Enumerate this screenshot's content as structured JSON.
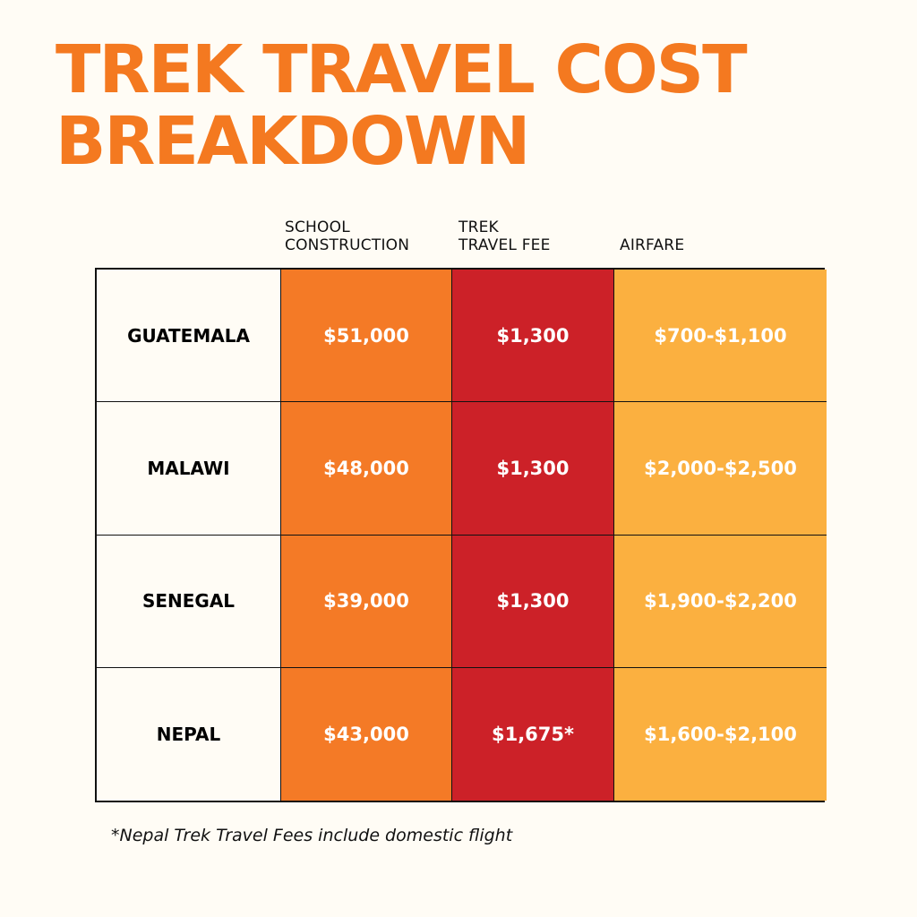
{
  "colors": {
    "title": "#f47920",
    "background": "#fffcf5",
    "school_construction": "#f47a26",
    "trek_travel_fee": "#cc2128",
    "airfare": "#fbb040",
    "grid_line": "#111111"
  },
  "chart_data": {
    "type": "table",
    "title_lines": [
      "TREK TRAVEL COST",
      "BREAKDOWN"
    ],
    "columns": [
      {
        "key": "school",
        "label_lines": [
          "SCHOOL",
          "CONSTRUCTION"
        ]
      },
      {
        "key": "fee",
        "label_lines": [
          "TREK",
          "TRAVEL FEE"
        ]
      },
      {
        "key": "air",
        "label_lines": [
          "AIRFARE"
        ]
      }
    ],
    "rows": [
      {
        "country": "GUATEMALA",
        "school": "$51,000",
        "fee": "$1,300",
        "air": "$700-$1,100"
      },
      {
        "country": "MALAWI",
        "school": "$48,000",
        "fee": "$1,300",
        "air": "$2,000-$2,500"
      },
      {
        "country": "SENEGAL",
        "school": "$39,000",
        "fee": "$1,300",
        "air": "$1,900-$2,200"
      },
      {
        "country": "NEPAL",
        "school": "$43,000",
        "fee": "$1,675*",
        "air": "$1,600-$2,100"
      }
    ],
    "footnote": "*Nepal Trek Travel Fees include domestic flight"
  }
}
